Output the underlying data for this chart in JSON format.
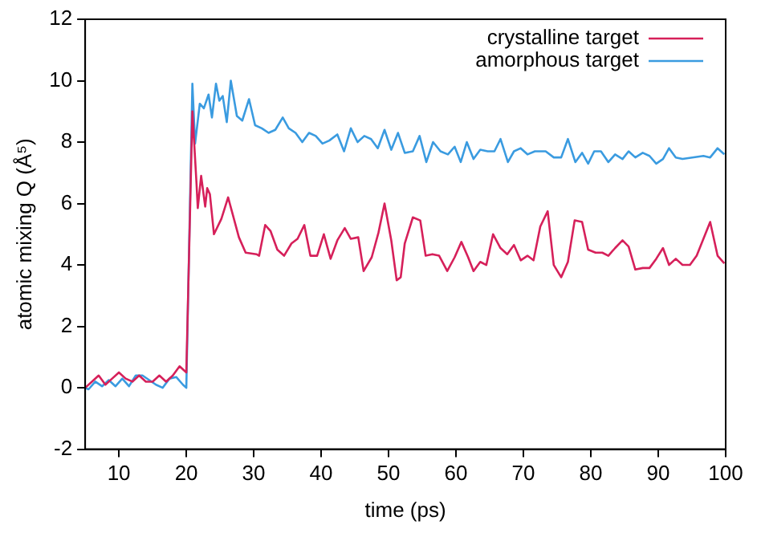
{
  "chart_data": {
    "type": "line",
    "xlabel": "time (ps)",
    "ylabel": "atomic mixing Q (Å⁵)",
    "xlim": [
      5,
      100
    ],
    "xticks": [
      10,
      20,
      30,
      40,
      50,
      60,
      70,
      80,
      90,
      100
    ],
    "ylim": [
      -2,
      12
    ],
    "yticks": [
      -2,
      0,
      2,
      4,
      6,
      8,
      10,
      12
    ],
    "grid": false,
    "legend": "top right",
    "marker": "none",
    "line_style": "solid",
    "series": [
      {
        "name": "crystalline target",
        "color": "#d6205a",
        "x": [
          5,
          6,
          7,
          8,
          9,
          10,
          11,
          12,
          13,
          14,
          15,
          16,
          17,
          18,
          19,
          20,
          20.9,
          21.5,
          21.7,
          22.2,
          22.8,
          23.1,
          23.5,
          24.1,
          25.2,
          26.2,
          27.8,
          28.8,
          30.4,
          30.8,
          31.7,
          32.5,
          33.5,
          34.5,
          35.6,
          36.5,
          37.5,
          38.4,
          39.4,
          40.4,
          41.4,
          42.4,
          43.5,
          44.4,
          45.5,
          46.3,
          47.5,
          48.5,
          49.4,
          50.4,
          51.2,
          51.8,
          52.4,
          53.6,
          54.7,
          55.5,
          56.5,
          57.5,
          58.7,
          59.8,
          60.8,
          61.8,
          62.6,
          63.6,
          64.5,
          65.5,
          66.6,
          67.6,
          68.6,
          69.6,
          70.6,
          71.5,
          72.5,
          73.6,
          74.5,
          75.6,
          76.6,
          77.6,
          78.7,
          79.6,
          80.7,
          81.7,
          82.6,
          83.6,
          84.7,
          85.6,
          86.6,
          87.7,
          88.7,
          89.7,
          90.7,
          91.6,
          92.6,
          93.6,
          94.7,
          95.7,
          96.7,
          97.7,
          98.8,
          99.8
        ],
        "values": [
          0,
          0.2,
          0.4,
          0.1,
          0.3,
          0.5,
          0.3,
          0.2,
          0.4,
          0.2,
          0.2,
          0.4,
          0.2,
          0.4,
          0.7,
          0.5,
          9,
          6.7,
          5.85,
          6.9,
          5.9,
          6.5,
          6.3,
          5.0,
          5.5,
          6.2,
          4.9,
          4.4,
          4.35,
          4.3,
          5.3,
          5.1,
          4.5,
          4.3,
          4.7,
          4.85,
          5.3,
          4.3,
          4.3,
          5.0,
          4.2,
          4.8,
          5.2,
          4.85,
          4.9,
          3.8,
          4.25,
          5.05,
          6.0,
          4.8,
          3.5,
          3.6,
          4.7,
          5.55,
          5.45,
          4.3,
          4.35,
          4.3,
          3.8,
          4.25,
          4.75,
          4.25,
          3.8,
          4.1,
          4.0,
          5.0,
          4.55,
          4.35,
          4.65,
          4.15,
          4.3,
          4.15,
          5.25,
          5.75,
          4.0,
          3.6,
          4.1,
          5.45,
          5.4,
          4.5,
          4.4,
          4.4,
          4.3,
          4.55,
          4.8,
          4.6,
          3.85,
          3.9,
          3.9,
          4.2,
          4.55,
          4.0,
          4.2,
          4.0,
          4.0,
          4.3,
          4.85,
          5.4,
          4.3,
          4.05
        ]
      },
      {
        "name": "amorphous target",
        "color": "#3a9be0",
        "x": [
          5,
          5.5,
          6.5,
          7.5,
          8.5,
          9.5,
          10.5,
          11.5,
          12.5,
          13.5,
          14.5,
          15.5,
          16.5,
          17.5,
          18.5,
          19.5,
          20,
          20.9,
          21.3,
          22,
          22.6,
          23.3,
          23.8,
          24.4,
          24.9,
          25.4,
          26,
          26.6,
          27.5,
          28.3,
          29.3,
          30.2,
          31.2,
          32.2,
          33.2,
          34.3,
          35.2,
          36.2,
          37.2,
          38.2,
          39.2,
          40.2,
          41.2,
          42.4,
          43.4,
          44.4,
          45.4,
          46.4,
          47.4,
          48.4,
          49.4,
          50.4,
          51.4,
          52.4,
          53.6,
          54.6,
          55.6,
          56.6,
          57.7,
          58.8,
          59.8,
          60.7,
          61.6,
          62.6,
          63.6,
          64.7,
          65.7,
          66.6,
          67.7,
          68.6,
          69.6,
          70.6,
          71.7,
          73.3,
          74.5,
          75.6,
          76.6,
          77.7,
          78.7,
          79.6,
          80.5,
          81.5,
          82.6,
          83.6,
          84.7,
          85.6,
          86.6,
          87.7,
          88.7,
          89.7,
          90.7,
          91.6,
          92.6,
          93.6,
          96.7,
          97.7,
          98.8,
          99.8
        ],
        "values": [
          0,
          -0.05,
          0.2,
          0.05,
          0.25,
          0.05,
          0.3,
          0.05,
          0.4,
          0.4,
          0.25,
          0.1,
          0,
          0.3,
          0.35,
          0.1,
          0,
          9.9,
          7.95,
          9.25,
          9.1,
          9.55,
          8.8,
          9.9,
          9.35,
          9.5,
          8.65,
          10.0,
          8.85,
          8.7,
          9.4,
          8.55,
          8.45,
          8.3,
          8.4,
          8.8,
          8.45,
          8.3,
          8.0,
          8.3,
          8.2,
          7.95,
          8.05,
          8.25,
          7.7,
          8.45,
          8.0,
          8.2,
          8.1,
          7.8,
          8.4,
          7.75,
          8.3,
          7.65,
          7.7,
          8.2,
          7.35,
          8.0,
          7.7,
          7.6,
          7.85,
          7.35,
          8.0,
          7.45,
          7.75,
          7.7,
          7.7,
          8.1,
          7.35,
          7.7,
          7.8,
          7.6,
          7.7,
          7.7,
          7.5,
          7.5,
          8.1,
          7.35,
          7.65,
          7.3,
          7.7,
          7.7,
          7.35,
          7.6,
          7.45,
          7.7,
          7.5,
          7.65,
          7.55,
          7.3,
          7.45,
          7.8,
          7.5,
          7.45,
          7.55,
          7.5,
          7.8,
          7.6
        ]
      }
    ]
  }
}
